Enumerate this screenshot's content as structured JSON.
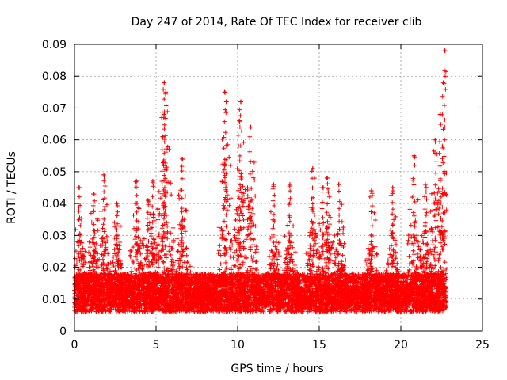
{
  "chart_data": {
    "type": "scatter",
    "title": "Day 247 of 2014, Rate Of TEC Index for receiver clib",
    "xlabel": "GPS time / hours",
    "ylabel": "ROTI / TECUs",
    "xlim": [
      0,
      25
    ],
    "ylim": [
      0,
      0.09
    ],
    "x_ticks": [
      0,
      5,
      10,
      15,
      20,
      25
    ],
    "x_tick_labels": [
      "0",
      "5",
      "10",
      "15",
      "20",
      "25"
    ],
    "y_ticks": [
      0,
      0.01,
      0.02,
      0.03,
      0.04,
      0.05,
      0.06,
      0.07,
      0.08,
      0.09
    ],
    "y_tick_labels": [
      "0",
      "0.01",
      "0.02",
      "0.03",
      "0.04",
      "0.05",
      "0.06",
      "0.07",
      "0.08",
      "0.09"
    ],
    "grid": true,
    "marker": "+",
    "series": [
      {
        "name": "ROTI",
        "color": "#ff0000",
        "points_summary": "Dense scatter of ROTI values from 0 to ~22.8 hours; bulk between 0.005 and 0.02 TECU/min with spikes up to ~0.088",
        "x_range": [
          0,
          22.8
        ],
        "peaks": [
          {
            "x": 0.3,
            "y": 0.045
          },
          {
            "x": 1.2,
            "y": 0.043
          },
          {
            "x": 1.8,
            "y": 0.049
          },
          {
            "x": 2.6,
            "y": 0.04
          },
          {
            "x": 3.8,
            "y": 0.047
          },
          {
            "x": 4.5,
            "y": 0.041
          },
          {
            "x": 4.8,
            "y": 0.047
          },
          {
            "x": 5.5,
            "y": 0.078
          },
          {
            "x": 5.6,
            "y": 0.075
          },
          {
            "x": 5.5,
            "y": 0.068
          },
          {
            "x": 5.4,
            "y": 0.061
          },
          {
            "x": 6.6,
            "y": 0.054
          },
          {
            "x": 9.2,
            "y": 0.075
          },
          {
            "x": 9.3,
            "y": 0.072
          },
          {
            "x": 10.2,
            "y": 0.072
          },
          {
            "x": 10.1,
            "y": 0.066
          },
          {
            "x": 10.8,
            "y": 0.064
          },
          {
            "x": 12.2,
            "y": 0.046
          },
          {
            "x": 13.2,
            "y": 0.046
          },
          {
            "x": 14.6,
            "y": 0.051
          },
          {
            "x": 15.2,
            "y": 0.045
          },
          {
            "x": 15.5,
            "y": 0.048
          },
          {
            "x": 16.2,
            "y": 0.046
          },
          {
            "x": 18.2,
            "y": 0.044
          },
          {
            "x": 19.5,
            "y": 0.045
          },
          {
            "x": 20.8,
            "y": 0.055
          },
          {
            "x": 21.5,
            "y": 0.046
          },
          {
            "x": 22.1,
            "y": 0.06
          },
          {
            "x": 22.4,
            "y": 0.068
          },
          {
            "x": 22.6,
            "y": 0.078
          },
          {
            "x": 22.7,
            "y": 0.088
          }
        ]
      }
    ]
  }
}
